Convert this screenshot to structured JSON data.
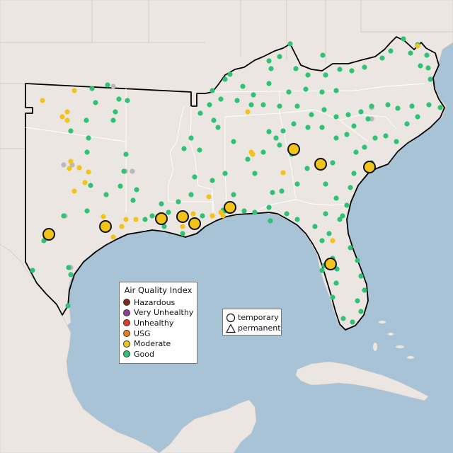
{
  "legend": {
    "title": "Air Quality Index",
    "categories": [
      {
        "label": "Hazardous",
        "color": "#7e2a1c"
      },
      {
        "label": "Very Unhealthy",
        "color": "#8f3f97"
      },
      {
        "label": "Unhealthy",
        "color": "#e03b2e"
      },
      {
        "label": "USG",
        "color": "#ef7d16"
      },
      {
        "label": "Moderate",
        "color": "#f2c318"
      },
      {
        "label": "Good",
        "color": "#2ec275"
      }
    ]
  },
  "monitor_types": {
    "temporary": "temporary",
    "permanent": "permanent"
  }
}
